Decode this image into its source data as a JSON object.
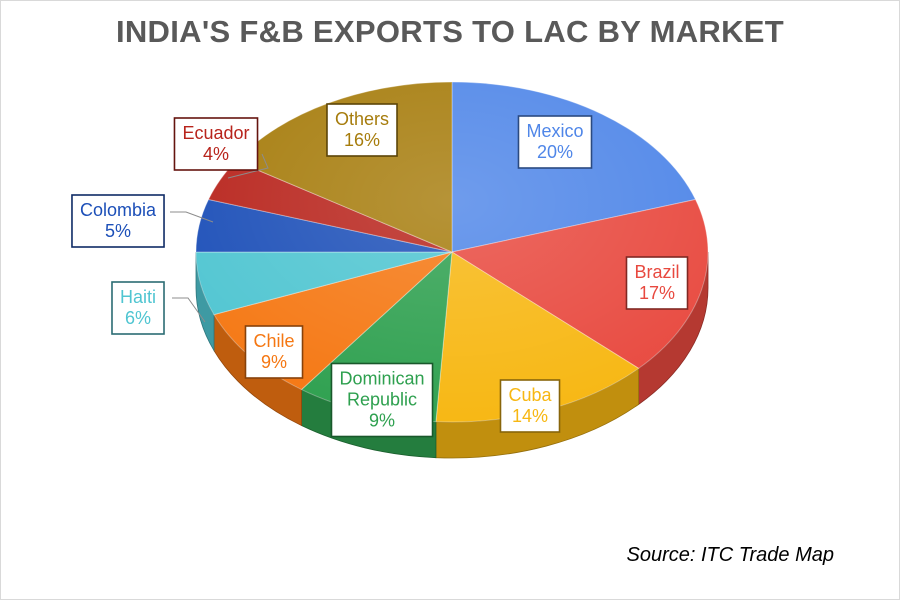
{
  "chart_data": {
    "type": "pie",
    "title": "INDIA'S F&B EXPORTS TO LAC BY MARKET",
    "source": "Source: ITC Trade Map",
    "slices": [
      {
        "label": "Mexico",
        "value": 20,
        "value_label": "20%",
        "color": "#4f86e8"
      },
      {
        "label": "Brazil",
        "value": 17,
        "value_label": "17%",
        "color": "#e8493f"
      },
      {
        "label": "Cuba",
        "value": 14,
        "value_label": "14%",
        "color": "#f7b712"
      },
      {
        "label": "Dominican\nRepublic",
        "value": 9,
        "value_label": "9%",
        "color": "#2ea04f"
      },
      {
        "label": "Chile",
        "value": 9,
        "value_label": "9%",
        "color": "#f57712"
      },
      {
        "label": "Haiti",
        "value": 6,
        "value_label": "6%",
        "color": "#4fc5d1"
      },
      {
        "label": "Colombia",
        "value": 5,
        "value_label": "5%",
        "color": "#1c4fb8"
      },
      {
        "label": "Ecuador",
        "value": 4,
        "value_label": "4%",
        "color": "#b8241c"
      },
      {
        "label": "Others",
        "value": 16,
        "value_label": "16%",
        "color": "#a67c0c"
      }
    ]
  }
}
